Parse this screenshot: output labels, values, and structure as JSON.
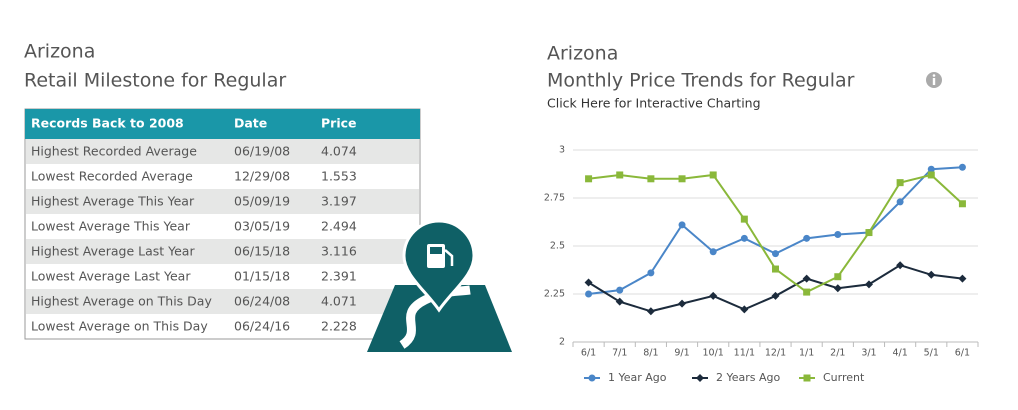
{
  "left_panel": {
    "title": "Arizona",
    "subtitle": "Retail Milestone for Regular",
    "table": {
      "headers": [
        "Records Back to 2008",
        "Date",
        "Price"
      ],
      "rows": [
        [
          "Highest Recorded Average",
          "06/19/08",
          "4.074"
        ],
        [
          "Lowest Recorded Average",
          "12/29/08",
          "1.553"
        ],
        [
          "Highest Average This Year",
          "05/09/19",
          "3.197"
        ],
        [
          "Lowest Average This Year",
          "03/05/19",
          "2.494"
        ],
        [
          "Highest Average Last Year",
          "06/15/18",
          "3.116"
        ],
        [
          "Lowest Average Last Year",
          "01/15/18",
          "2.391"
        ],
        [
          "Highest Average on This Day",
          "06/24/08",
          "4.071"
        ],
        [
          "Lowest Average on This Day",
          "06/24/16",
          "2.228"
        ]
      ]
    }
  },
  "chart_data": {
    "type": "line",
    "title": "Arizona",
    "subtitle": "Monthly Price Trends for Regular",
    "link": "Click Here for Interactive Charting",
    "categories": [
      "6/1",
      "7/1",
      "8/1",
      "9/1",
      "10/1",
      "11/1",
      "12/1",
      "1/1",
      "2/1",
      "3/1",
      "4/1",
      "5/1",
      "6/1"
    ],
    "series": [
      {
        "name": "1 Year Ago",
        "color": "#4a86c8",
        "marker": "circle",
        "values": [
          2.25,
          2.27,
          2.36,
          2.61,
          2.47,
          2.54,
          2.46,
          2.54,
          2.56,
          2.57,
          2.73,
          2.9,
          2.91
        ]
      },
      {
        "name": "2 Years Ago",
        "color": "#1c2b3c",
        "marker": "diamond",
        "values": [
          2.31,
          2.21,
          2.16,
          2.2,
          2.24,
          2.17,
          2.24,
          2.33,
          2.28,
          2.3,
          2.4,
          2.35,
          2.33
        ]
      },
      {
        "name": "Current",
        "color": "#8ab83a",
        "marker": "square",
        "values": [
          2.85,
          2.87,
          2.85,
          2.85,
          2.87,
          2.64,
          2.38,
          2.26,
          2.34,
          2.57,
          2.83,
          2.87,
          2.72
        ]
      }
    ],
    "ylim": [
      2,
      3
    ],
    "yticks": [
      2,
      2.25,
      2.5,
      2.75,
      3
    ],
    "grid": true
  }
}
